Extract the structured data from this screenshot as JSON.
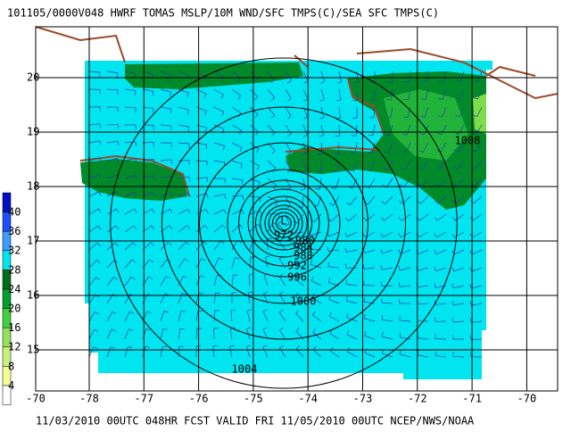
{
  "header": "101105/0000V048 HWRF TOMAS  MSLP/10M WND/SFC TMPS(C)/SEA SFC TMPS(C)",
  "footer": "11/03/2010 00UTC 048HR FCST VALID FRI 11/05/2010 00UTC   NCEP/NWS/NOAA",
  "latitude_labels": [
    "20",
    "19",
    "18",
    "17",
    "16",
    "15"
  ],
  "longitude_labels": [
    "-78",
    "-77",
    "-76",
    "-75",
    "-74",
    "-73",
    "-72",
    "-71",
    "-70"
  ],
  "corner_label": "-70",
  "colorbar_labels": [
    "40",
    "36",
    "32",
    "28",
    "24",
    "20",
    "16",
    "12",
    "8",
    "4"
  ],
  "low_label": "L",
  "isobar_labels": [
    "972",
    "980",
    "984",
    "988",
    "992",
    "996",
    "1000",
    "1004",
    "1008"
  ]
}
